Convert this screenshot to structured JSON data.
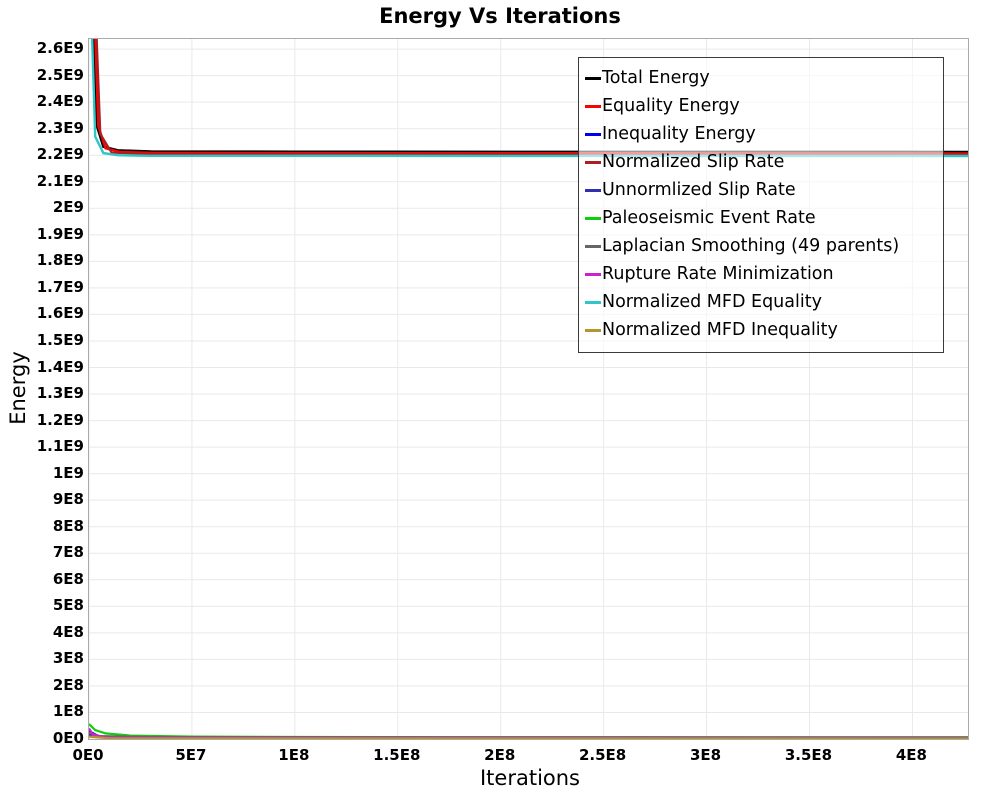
{
  "chart_data": {
    "type": "line",
    "title": "Energy Vs Iterations",
    "xlabel": "Iterations",
    "ylabel": "Energy",
    "xlim": [
      0,
      427000000
    ],
    "ylim": [
      0,
      2638000000
    ],
    "grid": true,
    "grid_color": "#e9e9e9",
    "plot_border_color": "#aaaaaa",
    "legend_position": "top-right-inside",
    "x_ticks": [
      {
        "value": 0,
        "label": "0E0"
      },
      {
        "value": 50000000,
        "label": "5E7"
      },
      {
        "value": 100000000,
        "label": "1E8"
      },
      {
        "value": 150000000,
        "label": "1.5E8"
      },
      {
        "value": 200000000,
        "label": "2E8"
      },
      {
        "value": 250000000,
        "label": "2.5E8"
      },
      {
        "value": 300000000,
        "label": "3E8"
      },
      {
        "value": 350000000,
        "label": "3.5E8"
      },
      {
        "value": 400000000,
        "label": "4E8"
      }
    ],
    "y_ticks": [
      {
        "value": 0,
        "label": "0E0"
      },
      {
        "value": 100000000,
        "label": "1E8"
      },
      {
        "value": 200000000,
        "label": "2E8"
      },
      {
        "value": 300000000,
        "label": "3E8"
      },
      {
        "value": 400000000,
        "label": "4E8"
      },
      {
        "value": 500000000,
        "label": "5E8"
      },
      {
        "value": 600000000,
        "label": "6E8"
      },
      {
        "value": 700000000,
        "label": "7E8"
      },
      {
        "value": 800000000,
        "label": "8E8"
      },
      {
        "value": 900000000,
        "label": "9E8"
      },
      {
        "value": 1000000000,
        "label": "1E9"
      },
      {
        "value": 1100000000,
        "label": "1.1E9"
      },
      {
        "value": 1200000000,
        "label": "1.2E9"
      },
      {
        "value": 1300000000,
        "label": "1.3E9"
      },
      {
        "value": 1400000000,
        "label": "1.4E9"
      },
      {
        "value": 1500000000,
        "label": "1.5E9"
      },
      {
        "value": 1600000000,
        "label": "1.6E9"
      },
      {
        "value": 1700000000,
        "label": "1.7E9"
      },
      {
        "value": 1800000000,
        "label": "1.8E9"
      },
      {
        "value": 1900000000,
        "label": "1.9E9"
      },
      {
        "value": 2000000000,
        "label": "2E9"
      },
      {
        "value": 2100000000,
        "label": "2.1E9"
      },
      {
        "value": 2200000000,
        "label": "2.2E9"
      },
      {
        "value": 2300000000,
        "label": "2.3E9"
      },
      {
        "value": 2400000000,
        "label": "2.4E9"
      },
      {
        "value": 2500000000,
        "label": "2.5E9"
      },
      {
        "value": 2600000000,
        "label": "2.6E9"
      }
    ],
    "series": [
      {
        "name": "Total Energy",
        "color": "#000000",
        "width": 2.6,
        "points": [
          [
            1000000,
            2900000000
          ],
          [
            3500000,
            2320000000
          ],
          [
            7000000,
            2232000000
          ],
          [
            14000000,
            2218000000
          ],
          [
            30000000,
            2214000000
          ],
          [
            100000000,
            2213000000
          ],
          [
            427000000,
            2212000000
          ]
        ]
      },
      {
        "name": "Equality Energy",
        "color": "#ff0000",
        "width": 2.4,
        "points": [
          [
            2000000,
            2900000000
          ],
          [
            4500000,
            2310000000
          ],
          [
            8000000,
            2226000000
          ],
          [
            15000000,
            2212000000
          ],
          [
            30000000,
            2209000000
          ],
          [
            100000000,
            2208000000
          ],
          [
            427000000,
            2207000000
          ]
        ]
      },
      {
        "name": "Inequality Energy",
        "color": "#0000ee",
        "width": 2.2,
        "points": [
          [
            0,
            30000000
          ],
          [
            5000000,
            9000000
          ],
          [
            20000000,
            4000000
          ],
          [
            427000000,
            3000000
          ]
        ]
      },
      {
        "name": "Normalized Slip Rate",
        "color": "#aa2020",
        "width": 2.2,
        "points": [
          [
            2500000,
            2900000000
          ],
          [
            5500000,
            2280000000
          ],
          [
            11000000,
            2210000000
          ],
          [
            30000000,
            2204000000
          ],
          [
            427000000,
            2203000000
          ]
        ]
      },
      {
        "name": "Unnormlized Slip Rate",
        "color": "#3030b0",
        "width": 2.2,
        "points": [
          [
            0,
            16000000
          ],
          [
            10000000,
            6000000
          ],
          [
            427000000,
            4000000
          ]
        ]
      },
      {
        "name": "Paleoseismic Event Rate",
        "color": "#11cc11",
        "width": 2.2,
        "points": [
          [
            0,
            56000000
          ],
          [
            3000000,
            34000000
          ],
          [
            8000000,
            21000000
          ],
          [
            20000000,
            13000000
          ],
          [
            50000000,
            9000000
          ],
          [
            100000000,
            7500000
          ],
          [
            200000000,
            6500000
          ],
          [
            427000000,
            6000000
          ]
        ]
      },
      {
        "name": "Laplacian Smoothing (49 parents)",
        "color": "#666666",
        "width": 2.2,
        "points": [
          [
            0,
            24000000
          ],
          [
            5000000,
            11000000
          ],
          [
            30000000,
            7000000
          ],
          [
            427000000,
            6000000
          ]
        ]
      },
      {
        "name": "Rupture Rate Minimization",
        "color": "#cc22cc",
        "width": 2.2,
        "points": [
          [
            0,
            40000000
          ],
          [
            2000000,
            15000000
          ],
          [
            10000000,
            5000000
          ],
          [
            427000000,
            2500000
          ]
        ]
      },
      {
        "name": "Normalized MFD Equality",
        "color": "#2ec6c6",
        "width": 2.4,
        "points": [
          [
            500000,
            2900000000
          ],
          [
            3000000,
            2270000000
          ],
          [
            7000000,
            2208000000
          ],
          [
            14000000,
            2200000000
          ],
          [
            30000000,
            2198000000
          ],
          [
            427000000,
            2197000000
          ]
        ]
      },
      {
        "name": "Normalized MFD Inequality",
        "color": "#b5952f",
        "width": 2.2,
        "points": [
          [
            0,
            9000000
          ],
          [
            10000000,
            2500000
          ],
          [
            427000000,
            1500000
          ]
        ]
      }
    ]
  }
}
